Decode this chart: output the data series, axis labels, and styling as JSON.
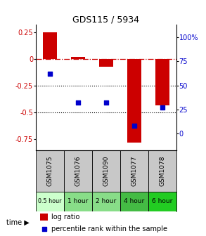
{
  "title": "GDS115 / 5934",
  "samples": [
    "GSM1075",
    "GSM1076",
    "GSM1090",
    "GSM1077",
    "GSM1078"
  ],
  "time_labels": [
    "0.5 hour",
    "1 hour",
    "2 hour",
    "4 hour",
    "6 hour"
  ],
  "time_colors": [
    "#ccffcc",
    "#88dd88",
    "#88dd88",
    "#44bb44",
    "#22cc22"
  ],
  "log_ratio": [
    0.25,
    0.02,
    -0.07,
    -0.78,
    -0.43
  ],
  "percentile_pct": [
    62.0,
    32.0,
    32.0,
    8.5,
    27.0
  ],
  "bar_color": "#cc0000",
  "dot_color": "#0000cc",
  "ylim_left": [
    -0.85,
    0.32
  ],
  "ylim_right": [
    -17.0,
    113.0
  ],
  "yticks_left": [
    0.25,
    0.0,
    -0.25,
    -0.5,
    -0.75
  ],
  "yticks_right": [
    100,
    75,
    50,
    25,
    0
  ],
  "hline_color": "#cc0000",
  "dotline_color": "#000000",
  "bg_color": "#ffffff",
  "grey_cell": "#c8c8c8"
}
